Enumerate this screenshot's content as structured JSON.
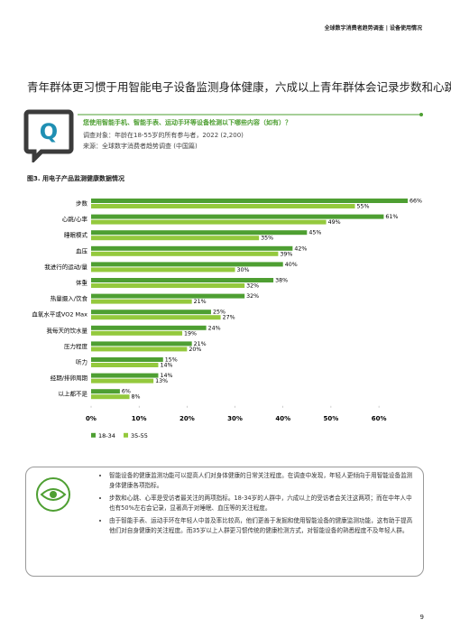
{
  "header": {
    "title": "全球数字消费者趋势调查 | 设备使用情况"
  },
  "headline": "青年群体更习惯于用智能电子设备监测身体健康，六成以上青年群体会记录步数和心跳",
  "question": {
    "text": "您使用智能手机、智能手表、运动手环等设备检测以下哪些内容（如有）？",
    "sample": "调查对象：年龄在18-55岁的所有参与者，2022 (2,200)",
    "source": "来源：全球数字消费者趋势调查 (中国篇)"
  },
  "chart_data": {
    "type": "hbar",
    "title": "图3. 用电子产品监测健康数据情况",
    "categories": [
      "步数",
      "心跳/心率",
      "睡眠模式",
      "血压",
      "我进行的运动/量",
      "体重",
      "热量摄入/饮食",
      "血氧水平或VO2 Max",
      "我每天的饮水量",
      "压力程度",
      "听力",
      "经期/排卵周期",
      "以上都不是"
    ],
    "series": [
      {
        "name": "18-34",
        "color": "#4e9f32",
        "values": [
          66,
          61,
          45,
          42,
          40,
          38,
          32,
          25,
          24,
          21,
          15,
          14,
          6
        ],
        "value_labels": [
          "66%",
          "61%",
          "45%",
          "42%",
          "40%",
          "38%",
          "32%",
          "25%",
          "24%",
          "21%",
          "15%",
          "14%",
          "6%"
        ]
      },
      {
        "name": "35-55",
        "color": "#94c93d",
        "values": [
          55,
          49,
          35,
          39,
          30,
          32,
          21,
          27,
          19,
          20,
          14,
          13,
          8
        ],
        "value_labels": [
          "55%",
          "49%",
          "35%",
          "39%",
          "30%",
          "32%",
          "21%",
          "27%",
          "19%",
          "20%",
          "14%",
          "13%",
          "8%"
        ]
      }
    ],
    "xlim": [
      0,
      66
    ],
    "xticks": [
      {
        "value": 0,
        "label": "0%"
      },
      {
        "value": 10,
        "label": "10%"
      },
      {
        "value": 20,
        "label": "20%"
      },
      {
        "value": 30,
        "label": "30%"
      },
      {
        "value": 40,
        "label": "40%"
      },
      {
        "value": 50,
        "label": "50%"
      },
      {
        "value": 60,
        "label": "60%"
      }
    ]
  },
  "notes": [
    "智能设备的健康监测功能可以提高人们对身体健康的日常关注程度。在调查中发现，年轻人更倾向于用智能设备监测身体健康各项指标。",
    "步数和心跳、心率是受访者最关注的两项指标。18-34岁的人群中，六成以上的受访者会关注这两项；而在中年人中也有50%左右会记录，显著高于对睡眠、血压等的关注程度。",
    "由于智能手表、运动手环在年轻人中普及率比较高，他们更善于发掘和使用智能设备的健康监测功能，这有助于提高他们对自身健康的关注程度。而35岁以上人群更习惯传统的健康检测方式，对智能设备的熟悉程度不及年轻人群。"
  ],
  "page_number": "9"
}
